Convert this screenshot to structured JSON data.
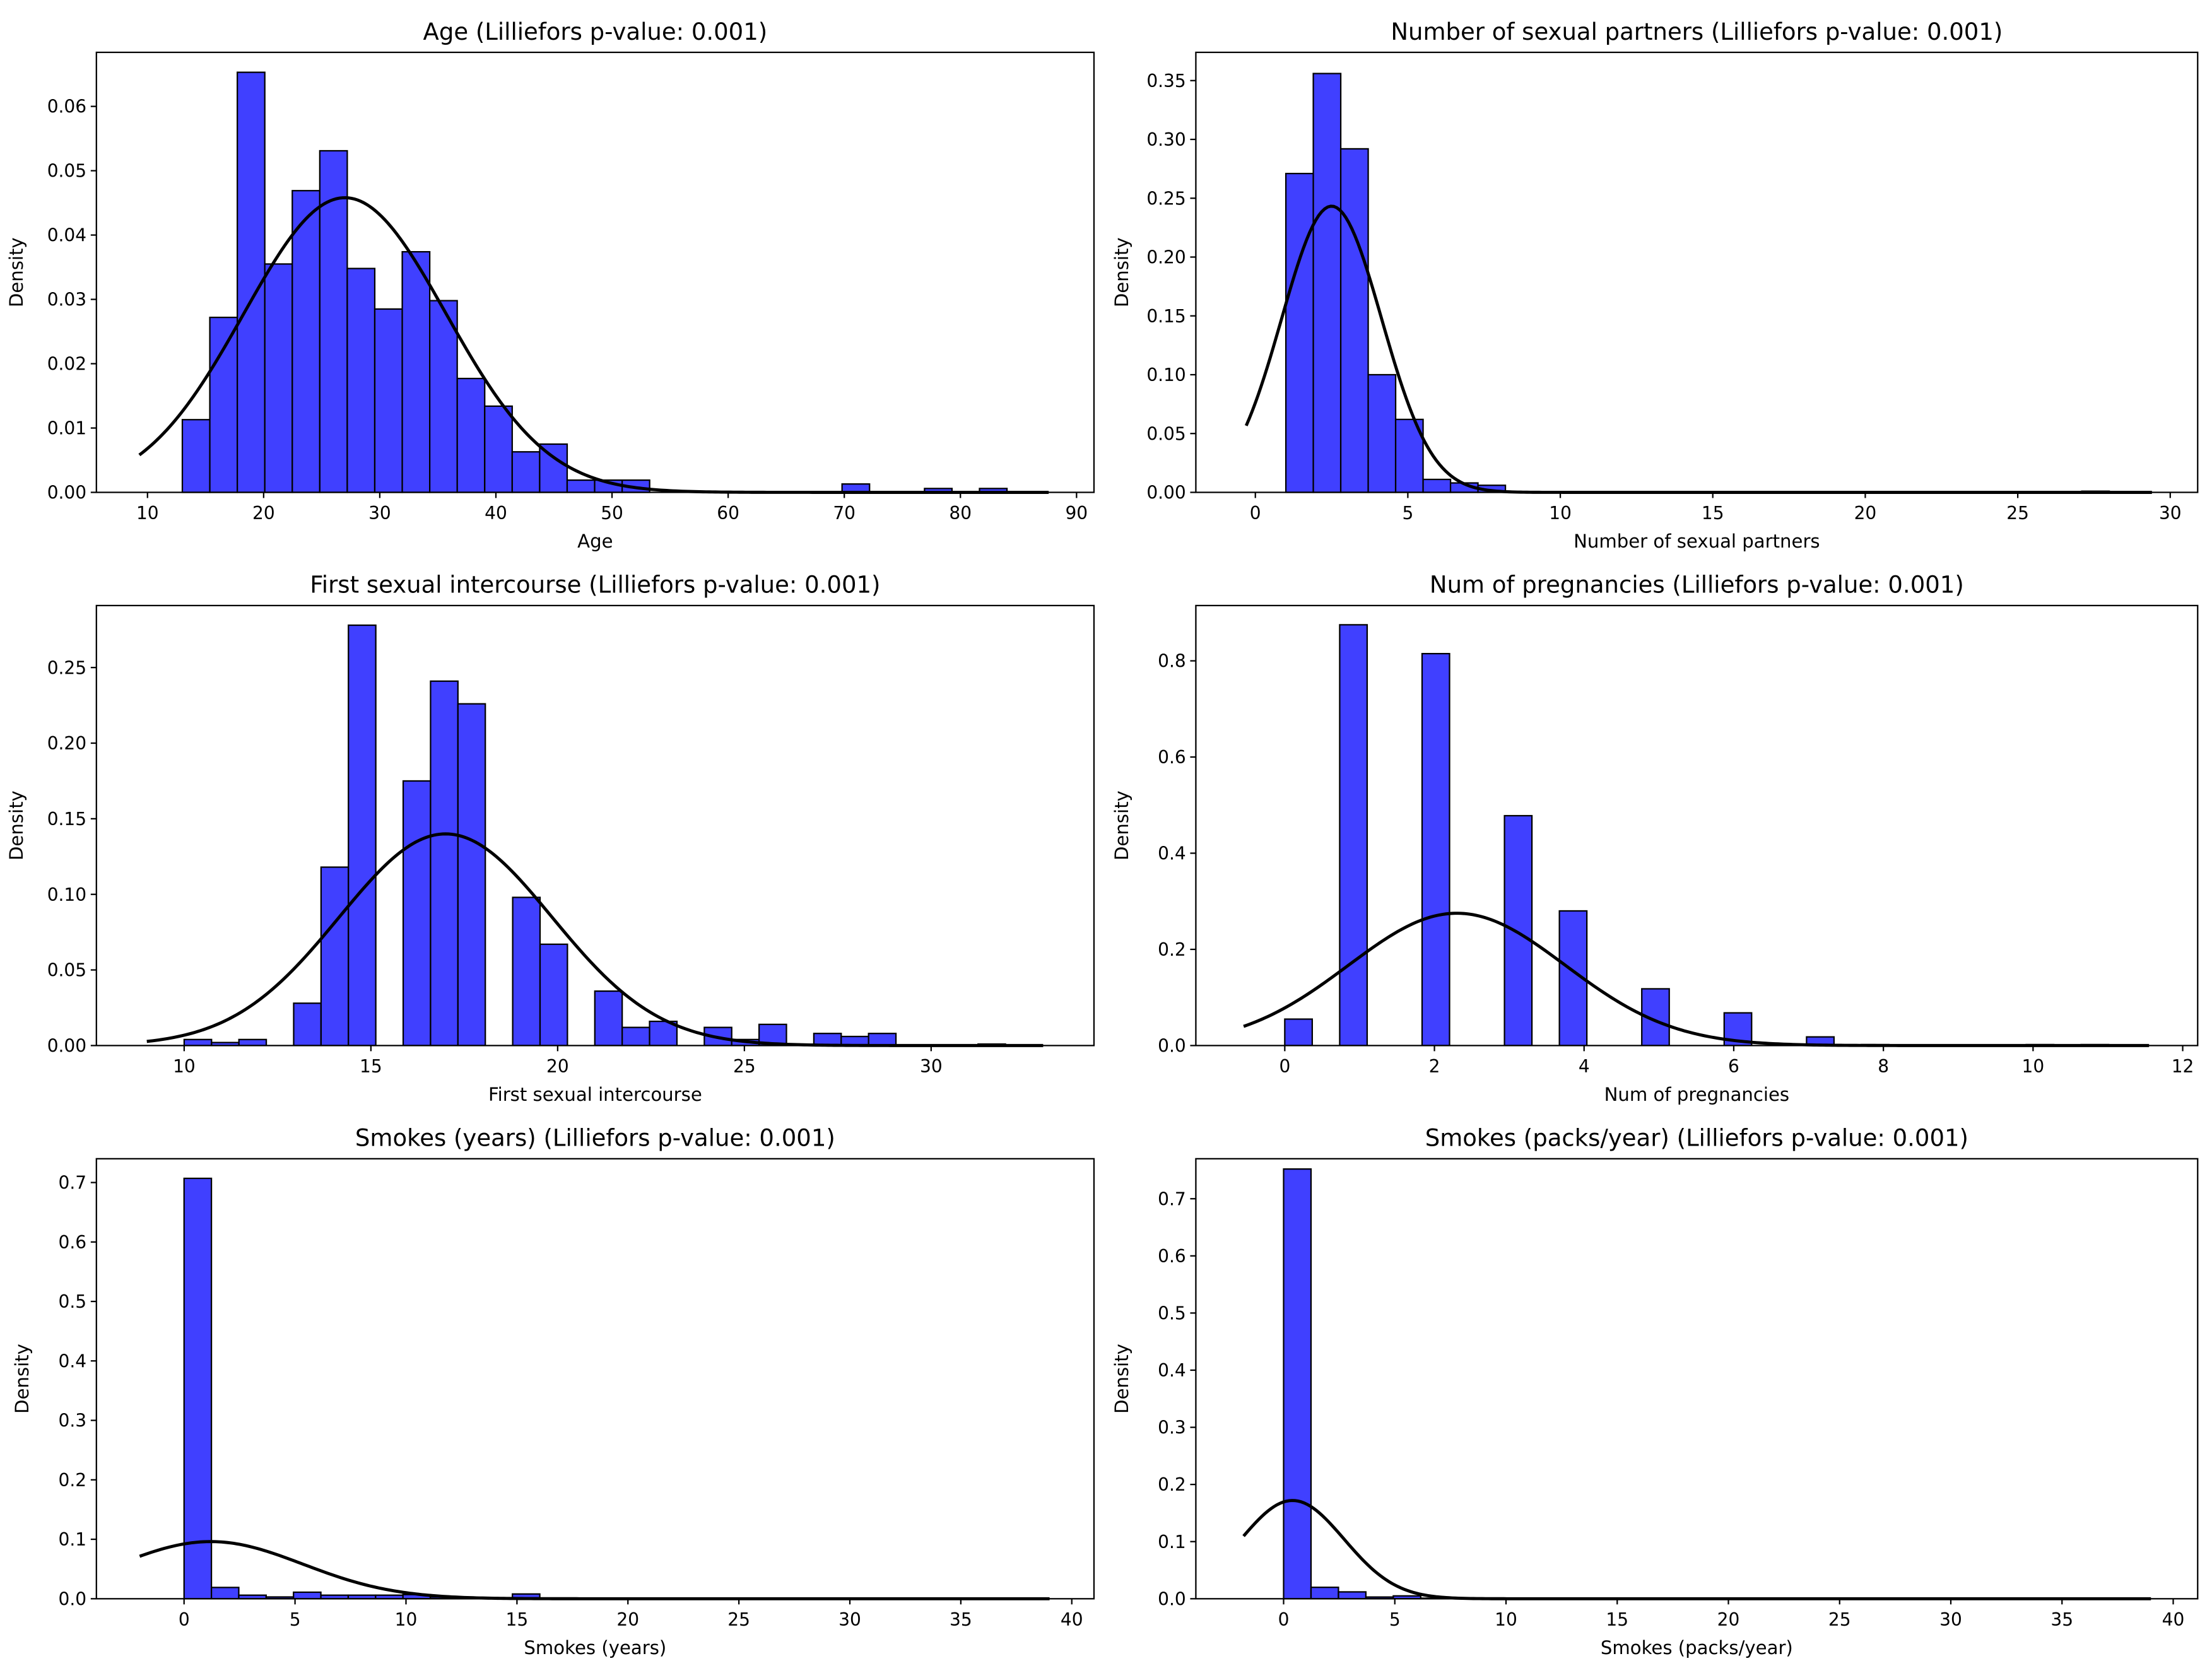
{
  "chart_data": [
    {
      "type": "bar",
      "title": "Age (Lilliefors p-value: 0.001)",
      "xlabel": "Age",
      "ylabel": "Density",
      "xlim": [
        5.6,
        91.5
      ],
      "ylim": [
        0,
        0.0684
      ],
      "xticks": [
        10,
        20,
        30,
        40,
        50,
        60,
        70,
        80,
        90
      ],
      "xtick_labels": [
        "10",
        "20",
        "30",
        "40",
        "50",
        "60",
        "70",
        "80",
        "90"
      ],
      "yticks": [
        0,
        0.01,
        0.02,
        0.03,
        0.04,
        0.05,
        0.06
      ],
      "ytick_labels": [
        "0.00",
        "0.01",
        "0.02",
        "0.03",
        "0.04",
        "0.05",
        "0.06"
      ],
      "bin_start": 13,
      "bin_width": 2.367,
      "values": [
        0.0113,
        0.0272,
        0.0653,
        0.0355,
        0.0469,
        0.0531,
        0.0348,
        0.0285,
        0.0374,
        0.0298,
        0.0177,
        0.0134,
        0.0063,
        0.0075,
        0.0019,
        0.0019,
        0.0019,
        0,
        0,
        0,
        0,
        0,
        0,
        0,
        0.0013,
        0,
        0,
        0.0006,
        0,
        0.0006
      ],
      "fit": {
        "mean": 27.0,
        "sd": 8.71,
        "range": [
          9.3,
          87.6
        ]
      }
    },
    {
      "type": "bar",
      "title": "Number of sexual partners (Lilliefors p-value: 0.001)",
      "xlabel": "Number of sexual partners",
      "ylabel": "Density",
      "xlim": [
        -3.9,
        30.9
      ],
      "ylim": [
        0,
        0.374
      ],
      "xticks": [
        0,
        5,
        10,
        15,
        20,
        25,
        30
      ],
      "xtick_labels": [
        "0",
        "5",
        "10",
        "15",
        "20",
        "25",
        "30"
      ],
      "yticks": [
        0,
        0.05,
        0.1,
        0.15,
        0.2,
        0.25,
        0.3,
        0.35
      ],
      "ytick_labels": [
        "0.00",
        "0.05",
        "0.10",
        "0.15",
        "0.20",
        "0.25",
        "0.30",
        "0.35"
      ],
      "bin_start": 1,
      "bin_width": 0.9,
      "values": [
        0.271,
        0.356,
        0.292,
        0.1,
        0.062,
        0.011,
        0.008,
        0.006,
        0,
        0,
        0,
        0,
        0,
        0,
        0,
        0,
        0,
        0,
        0,
        0,
        0,
        0,
        0,
        0,
        0,
        0,
        0,
        0,
        0,
        0.001
      ],
      "fit": {
        "mean": 2.5,
        "sd": 1.64,
        "range": [
          -0.3,
          29.4
        ]
      }
    },
    {
      "type": "bar",
      "title": "First sexual intercourse (Lilliefors p-value: 0.001)",
      "xlabel": "First sexual intercourse",
      "ylabel": "Density",
      "xlim": [
        7.65,
        34.36
      ],
      "ylim": [
        0,
        0.291
      ],
      "xticks": [
        10,
        15,
        20,
        25,
        30
      ],
      "xtick_labels": [
        "10",
        "15",
        "20",
        "25",
        "30"
      ],
      "yticks": [
        0,
        0.05,
        0.1,
        0.15,
        0.2,
        0.25
      ],
      "ytick_labels": [
        "0.00",
        "0.05",
        "0.10",
        "0.15",
        "0.20",
        "0.25"
      ],
      "bin_start": 10,
      "bin_width": 0.733,
      "values": [
        0.004,
        0.002,
        0.004,
        0,
        0.028,
        0.118,
        0.278,
        0,
        0.175,
        0.241,
        0.226,
        0,
        0.098,
        0.067,
        0,
        0.036,
        0.012,
        0.016,
        0,
        0.012,
        0.004,
        0.014,
        0,
        0.008,
        0.006,
        0.008,
        0,
        0,
        0,
        0.001
      ],
      "fit": {
        "mean": 17.0,
        "sd": 2.85,
        "range": [
          9.0,
          33.0
        ]
      }
    },
    {
      "type": "bar",
      "title": "Num of pregnancies (Lilliefors p-value: 0.001)",
      "xlabel": "Num of pregnancies",
      "ylabel": "Density",
      "xlim": [
        -1.68,
        12.2
      ],
      "ylim": [
        0,
        0.915
      ],
      "xticks": [
        0,
        2,
        4,
        6,
        8,
        10,
        12
      ],
      "xtick_labels": [
        "0",
        "2",
        "4",
        "6",
        "8",
        "10",
        "12"
      ],
      "yticks": [
        0,
        0.2,
        0.4,
        0.6,
        0.8
      ],
      "ytick_labels": [
        "0.0",
        "0.2",
        "0.4",
        "0.6",
        "0.8"
      ],
      "bin_start": 0,
      "bin_width": 0.367,
      "values": [
        0.055,
        0,
        0.875,
        0,
        0,
        0.815,
        0,
        0,
        0.478,
        0,
        0.28,
        0,
        0,
        0.118,
        0,
        0,
        0.068,
        0,
        0,
        0.018,
        0,
        0.002,
        0,
        0,
        0,
        0,
        0,
        0.002,
        0,
        0.002
      ],
      "fit": {
        "mean": 2.3,
        "sd": 1.45,
        "range": [
          -0.55,
          11.55
        ]
      }
    },
    {
      "type": "bar",
      "title": "Smokes (years) (Lilliefors p-value: 0.001)",
      "xlabel": "Smokes (years)",
      "ylabel": "Density",
      "xlim": [
        -3.95,
        41.0
      ],
      "ylim": [
        0,
        0.74
      ],
      "xticks": [
        0,
        5,
        10,
        15,
        20,
        25,
        30,
        35,
        40
      ],
      "xtick_labels": [
        "0",
        "5",
        "10",
        "15",
        "20",
        "25",
        "30",
        "35",
        "40"
      ],
      "yticks": [
        0,
        0.1,
        0.2,
        0.3,
        0.4,
        0.5,
        0.6,
        0.7
      ],
      "ytick_labels": [
        "0.0",
        "0.1",
        "0.2",
        "0.3",
        "0.4",
        "0.5",
        "0.6",
        "0.7"
      ],
      "bin_start": 0,
      "bin_width": 1.233,
      "values": [
        0.707,
        0.019,
        0.006,
        0.003,
        0.011,
        0.006,
        0.006,
        0.006,
        0.007,
        0.003,
        0.001,
        0,
        0.008,
        0.001,
        0,
        0,
        0.001,
        0,
        0,
        0,
        0,
        0.001,
        0,
        0,
        0,
        0,
        0,
        0,
        0,
        0.001
      ],
      "fit": {
        "mean": 1.2,
        "sd": 4.15,
        "range": [
          -2.0,
          39.0
        ]
      }
    },
    {
      "type": "bar",
      "title": "Smokes (packs/year) (Lilliefors p-value: 0.001)",
      "xlabel": "Smokes (packs/year)",
      "ylabel": "Density",
      "xlim": [
        -5.6,
        41.1
      ],
      "ylim": [
        0,
        0.77
      ],
      "xticks": [
        0,
        5,
        10,
        15,
        20,
        25,
        30,
        35,
        40
      ],
      "xtick_labels": [
        "0",
        "5",
        "10",
        "15",
        "20",
        "25",
        "30",
        "35",
        "40"
      ],
      "yticks": [
        0,
        0.1,
        0.2,
        0.3,
        0.4,
        0.5,
        0.6,
        0.7
      ],
      "ytick_labels": [
        "0.0",
        "0.1",
        "0.2",
        "0.3",
        "0.4",
        "0.5",
        "0.6",
        "0.7"
      ],
      "bin_start": 0,
      "bin_width": 1.233,
      "values": [
        0.752,
        0.02,
        0.012,
        0.003,
        0.005,
        0.001,
        0,
        0,
        0,
        0,
        0,
        0,
        0,
        0,
        0,
        0,
        0,
        0,
        0,
        0,
        0,
        0,
        0,
        0,
        0,
        0,
        0,
        0,
        0,
        0.001
      ],
      "fit": {
        "mean": 0.4,
        "sd": 2.32,
        "range": [
          -1.8,
          39.0
        ]
      }
    }
  ],
  "colors": {
    "bar_fill": "#4040ff",
    "bar_edge": "#000000",
    "fit_line": "#000000"
  }
}
